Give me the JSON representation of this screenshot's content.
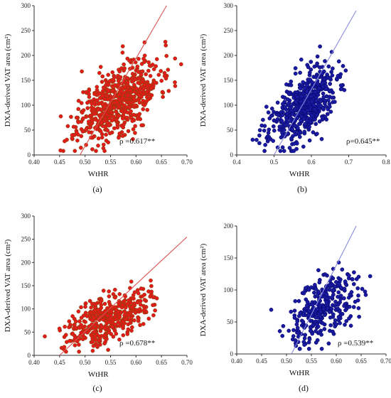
{
  "chart_data": [
    {
      "panel_label": "(a)",
      "type": "scatter",
      "xlabel": "WtHR",
      "ylabel": "DXA-derived VAT area (cm²)",
      "xlim": [
        0.4,
        0.7
      ],
      "ylim": [
        0,
        300
      ],
      "xticks": [
        "0.40",
        "0.45",
        "0.50",
        "0.55",
        "0.60",
        "0.65",
        "0.70"
      ],
      "yticks": [
        "0",
        "50",
        "100",
        "150",
        "200",
        "250",
        "300"
      ],
      "annotation": "ρ =0.617**",
      "fit_line": {
        "x": [
          0.49,
          0.66
        ],
        "y": [
          0,
          300
        ]
      },
      "point_color": "#e41a1c",
      "point_edge": "#7a4a00",
      "line_color": "#d9534f",
      "n_points": 640,
      "x_center": 0.565,
      "x_spread": 0.04,
      "y_center": 110,
      "y_spread": 40,
      "seed": 11
    },
    {
      "panel_label": "(b)",
      "type": "scatter",
      "xlabel": "WtHR",
      "ylabel": "DXA-derived VAT area (cm²)",
      "xlim": [
        0.4,
        0.8
      ],
      "ylim": [
        0,
        300
      ],
      "xticks": [
        "0.4",
        "0.5",
        "0.6",
        "0.7",
        "0.8"
      ],
      "yticks": [
        "0",
        "50",
        "100",
        "150",
        "200",
        "250",
        "300"
      ],
      "annotation": "ρ=0.645**",
      "fit_line": {
        "x": [
          0.5,
          0.72
        ],
        "y": [
          0,
          290
        ]
      },
      "point_color": "#1a1aa0",
      "point_edge": "#000060",
      "line_color": "#8a8ae0",
      "n_points": 560,
      "x_center": 0.575,
      "x_spread": 0.045,
      "y_center": 95,
      "y_spread": 38,
      "seed": 23
    },
    {
      "panel_label": "(c)",
      "type": "scatter",
      "xlabel": "WtHR",
      "ylabel": "DXA-derived VAT area (cm²)",
      "xlim": [
        0.4,
        0.7
      ],
      "ylim": [
        0,
        300
      ],
      "xticks": [
        "0.40",
        "0.45",
        "0.50",
        "0.55",
        "0.60",
        "0.65",
        "0.70"
      ],
      "yticks": [
        "0",
        "50",
        "100",
        "150",
        "200",
        "250",
        "300"
      ],
      "annotation": "ρ =0.678**",
      "fit_line": {
        "x": [
          0.45,
          0.7
        ],
        "y": [
          0,
          255
        ]
      },
      "point_color": "#e41a1c",
      "point_edge": "#7a4a00",
      "line_color": "#d9534f",
      "n_points": 420,
      "x_center": 0.545,
      "x_spread": 0.04,
      "y_center": 82,
      "y_spread": 30,
      "seed": 37
    },
    {
      "panel_label": "(d)",
      "type": "scatter",
      "xlabel": "WtHR",
      "ylabel": "DXA-derived VAT area (cm²)",
      "xlim": [
        0.4,
        0.7
      ],
      "ylim": [
        0,
        200
      ],
      "xticks": [
        "0.40",
        "0.45",
        "0.50",
        "0.55",
        "0.60",
        "0.65",
        "0.70"
      ],
      "yticks": [
        "0",
        "50",
        "100",
        "150",
        "200"
      ],
      "annotation": "ρ =0.539**",
      "fit_line": {
        "x": [
          0.51,
          0.64
        ],
        "y": [
          0,
          200
        ]
      },
      "point_color": "#1a1aa0",
      "point_edge": "#000060",
      "line_color": "#8a8ae0",
      "n_points": 330,
      "x_center": 0.575,
      "x_spread": 0.035,
      "y_center": 70,
      "y_spread": 30,
      "seed": 51
    }
  ]
}
